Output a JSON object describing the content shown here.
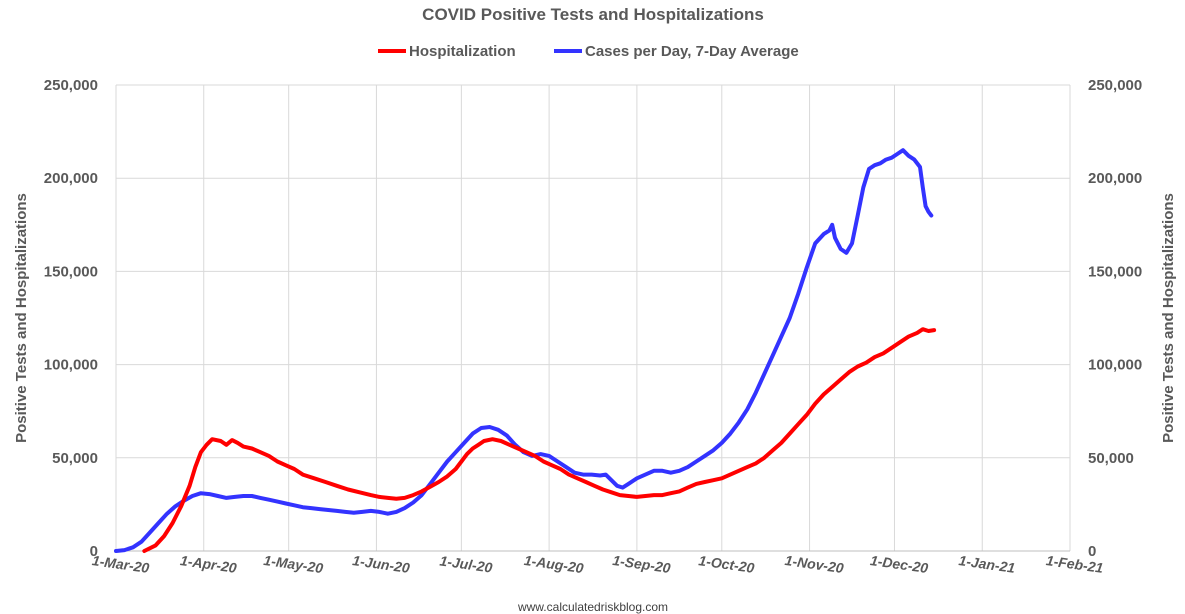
{
  "chart_data": {
    "type": "line",
    "title": "COVID Positive Tests and Hospitalizations",
    "ylabel_left": "Positive Tests and Hospitalizations",
    "ylabel_right": "Positive Tests and Hospitalizations",
    "credit": "www.calculatedriskblog.com",
    "ylim": [
      0,
      250000
    ],
    "yticks": [
      0,
      50000,
      100000,
      150000,
      200000,
      250000
    ],
    "ytick_labels": [
      "0",
      "50,000",
      "100,000",
      "150,000",
      "200,000",
      "250,000"
    ],
    "x_range_days": [
      0,
      337
    ],
    "xticks": [
      {
        "day": 0,
        "label": "1-Mar-20"
      },
      {
        "day": 31,
        "label": "1-Apr-20"
      },
      {
        "day": 61,
        "label": "1-May-20"
      },
      {
        "day": 92,
        "label": "1-Jun-20"
      },
      {
        "day": 122,
        "label": "1-Jul-20"
      },
      {
        "day": 153,
        "label": "1-Aug-20"
      },
      {
        "day": 184,
        "label": "1-Sep-20"
      },
      {
        "day": 214,
        "label": "1-Oct-20"
      },
      {
        "day": 245,
        "label": "1-Nov-20"
      },
      {
        "day": 275,
        "label": "1-Dec-20"
      },
      {
        "day": 306,
        "label": "1-Jan-21"
      },
      {
        "day": 337,
        "label": "1-Feb-21"
      }
    ],
    "series": [
      {
        "name": "Hospitalization",
        "color": "#ff0000",
        "points": [
          [
            10,
            0
          ],
          [
            14,
            3000
          ],
          [
            17,
            8000
          ],
          [
            20,
            15000
          ],
          [
            23,
            24000
          ],
          [
            26,
            35000
          ],
          [
            28,
            45000
          ],
          [
            30,
            53000
          ],
          [
            32,
            57000
          ],
          [
            34,
            60000
          ],
          [
            37,
            59000
          ],
          [
            39,
            57000
          ],
          [
            41,
            59500
          ],
          [
            43,
            58000
          ],
          [
            45,
            56000
          ],
          [
            48,
            55000
          ],
          [
            51,
            53000
          ],
          [
            54,
            51000
          ],
          [
            57,
            48000
          ],
          [
            60,
            46000
          ],
          [
            63,
            44000
          ],
          [
            66,
            41000
          ],
          [
            70,
            39000
          ],
          [
            74,
            37000
          ],
          [
            78,
            35000
          ],
          [
            82,
            33000
          ],
          [
            86,
            31500
          ],
          [
            90,
            30000
          ],
          [
            93,
            29000
          ],
          [
            96,
            28500
          ],
          [
            99,
            28000
          ],
          [
            102,
            28500
          ],
          [
            105,
            30000
          ],
          [
            108,
            32000
          ],
          [
            111,
            34500
          ],
          [
            114,
            37000
          ],
          [
            117,
            40000
          ],
          [
            120,
            44000
          ],
          [
            122,
            48000
          ],
          [
            124,
            52000
          ],
          [
            126,
            55000
          ],
          [
            128,
            57000
          ],
          [
            130,
            59000
          ],
          [
            133,
            60000
          ],
          [
            136,
            59000
          ],
          [
            139,
            57000
          ],
          [
            142,
            55000
          ],
          [
            145,
            53000
          ],
          [
            148,
            51000
          ],
          [
            151,
            48000
          ],
          [
            154,
            46000
          ],
          [
            157,
            44000
          ],
          [
            160,
            41000
          ],
          [
            163,
            39000
          ],
          [
            166,
            37000
          ],
          [
            169,
            35000
          ],
          [
            172,
            33000
          ],
          [
            175,
            31500
          ],
          [
            178,
            30000
          ],
          [
            181,
            29500
          ],
          [
            184,
            29000
          ],
          [
            187,
            29500
          ],
          [
            190,
            30000
          ],
          [
            193,
            30000
          ],
          [
            196,
            31000
          ],
          [
            199,
            32000
          ],
          [
            202,
            34000
          ],
          [
            205,
            36000
          ],
          [
            208,
            37000
          ],
          [
            211,
            38000
          ],
          [
            214,
            39000
          ],
          [
            217,
            41000
          ],
          [
            220,
            43000
          ],
          [
            223,
            45000
          ],
          [
            226,
            47000
          ],
          [
            229,
            50000
          ],
          [
            232,
            54000
          ],
          [
            235,
            58000
          ],
          [
            238,
            63000
          ],
          [
            241,
            68000
          ],
          [
            244,
            73000
          ],
          [
            247,
            79000
          ],
          [
            250,
            84000
          ],
          [
            253,
            88000
          ],
          [
            256,
            92000
          ],
          [
            259,
            96000
          ],
          [
            262,
            99000
          ],
          [
            265,
            101000
          ],
          [
            268,
            104000
          ],
          [
            271,
            106000
          ],
          [
            274,
            109000
          ],
          [
            277,
            112000
          ],
          [
            280,
            115000
          ],
          [
            283,
            117000
          ],
          [
            285,
            119000
          ],
          [
            287,
            118000
          ],
          [
            289,
            118500
          ]
        ]
      },
      {
        "name": "Cases per Day, 7-Day Average",
        "color": "#3333ff",
        "points": [
          [
            0,
            0
          ],
          [
            3,
            500
          ],
          [
            6,
            2000
          ],
          [
            9,
            5000
          ],
          [
            12,
            10000
          ],
          [
            15,
            15000
          ],
          [
            18,
            20000
          ],
          [
            21,
            24000
          ],
          [
            24,
            27000
          ],
          [
            27,
            29500
          ],
          [
            30,
            31000
          ],
          [
            33,
            30500
          ],
          [
            36,
            29500
          ],
          [
            39,
            28500
          ],
          [
            42,
            29000
          ],
          [
            45,
            29500
          ],
          [
            48,
            29500
          ],
          [
            51,
            28500
          ],
          [
            54,
            27500
          ],
          [
            57,
            26500
          ],
          [
            60,
            25500
          ],
          [
            63,
            24500
          ],
          [
            66,
            23500
          ],
          [
            69,
            23000
          ],
          [
            72,
            22500
          ],
          [
            75,
            22000
          ],
          [
            78,
            21500
          ],
          [
            81,
            21000
          ],
          [
            84,
            20500
          ],
          [
            87,
            21000
          ],
          [
            90,
            21500
          ],
          [
            93,
            21000
          ],
          [
            96,
            20000
          ],
          [
            99,
            21000
          ],
          [
            102,
            23000
          ],
          [
            105,
            26000
          ],
          [
            108,
            30000
          ],
          [
            111,
            36000
          ],
          [
            114,
            42000
          ],
          [
            117,
            48000
          ],
          [
            120,
            53000
          ],
          [
            123,
            58000
          ],
          [
            126,
            63000
          ],
          [
            129,
            66000
          ],
          [
            132,
            66500
          ],
          [
            135,
            65000
          ],
          [
            138,
            62000
          ],
          [
            141,
            57000
          ],
          [
            144,
            53000
          ],
          [
            147,
            51000
          ],
          [
            150,
            52000
          ],
          [
            153,
            51000
          ],
          [
            156,
            48000
          ],
          [
            159,
            45000
          ],
          [
            162,
            42000
          ],
          [
            165,
            41000
          ],
          [
            168,
            41000
          ],
          [
            171,
            40500
          ],
          [
            173,
            41000
          ],
          [
            175,
            38000
          ],
          [
            177,
            35000
          ],
          [
            179,
            34000
          ],
          [
            181,
            36000
          ],
          [
            184,
            39000
          ],
          [
            187,
            41000
          ],
          [
            190,
            43000
          ],
          [
            193,
            43000
          ],
          [
            196,
            42000
          ],
          [
            199,
            43000
          ],
          [
            202,
            45000
          ],
          [
            205,
            48000
          ],
          [
            208,
            51000
          ],
          [
            211,
            54000
          ],
          [
            214,
            58000
          ],
          [
            217,
            63000
          ],
          [
            220,
            69000
          ],
          [
            223,
            76000
          ],
          [
            226,
            85000
          ],
          [
            229,
            95000
          ],
          [
            232,
            105000
          ],
          [
            235,
            115000
          ],
          [
            238,
            125000
          ],
          [
            241,
            138000
          ],
          [
            244,
            152000
          ],
          [
            247,
            165000
          ],
          [
            250,
            170000
          ],
          [
            252,
            172000
          ],
          [
            253,
            175000
          ],
          [
            254,
            168000
          ],
          [
            256,
            162000
          ],
          [
            258,
            160000
          ],
          [
            260,
            165000
          ],
          [
            262,
            180000
          ],
          [
            264,
            195000
          ],
          [
            266,
            205000
          ],
          [
            268,
            207000
          ],
          [
            270,
            208000
          ],
          [
            272,
            210000
          ],
          [
            274,
            211000
          ],
          [
            276,
            213000
          ],
          [
            278,
            215000
          ],
          [
            280,
            212000
          ],
          [
            282,
            210000
          ],
          [
            284,
            206000
          ],
          [
            285,
            195000
          ],
          [
            286,
            185000
          ],
          [
            287,
            182000
          ],
          [
            288,
            180000
          ]
        ]
      }
    ]
  }
}
